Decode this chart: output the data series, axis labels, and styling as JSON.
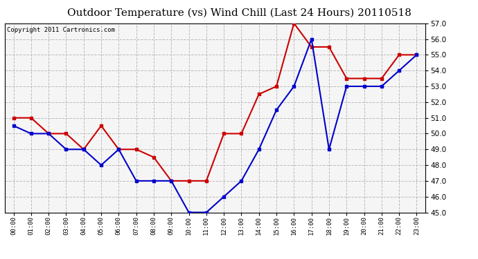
{
  "title": "Outdoor Temperature (vs) Wind Chill (Last 24 Hours) 20110518",
  "copyright": "Copyright 2011 Cartronics.com",
  "hours": [
    "00:00",
    "01:00",
    "02:00",
    "03:00",
    "04:00",
    "05:00",
    "06:00",
    "07:00",
    "08:00",
    "09:00",
    "10:00",
    "11:00",
    "12:00",
    "13:00",
    "14:00",
    "15:00",
    "16:00",
    "17:00",
    "18:00",
    "19:00",
    "20:00",
    "21:00",
    "22:00",
    "23:00"
  ],
  "temp": [
    51.0,
    51.0,
    50.0,
    50.0,
    49.0,
    50.5,
    49.0,
    49.0,
    48.5,
    47.0,
    47.0,
    47.0,
    50.0,
    50.0,
    52.5,
    53.0,
    57.0,
    55.5,
    55.5,
    53.5,
    53.5,
    53.5,
    55.0,
    55.0
  ],
  "windchill": [
    50.5,
    50.0,
    50.0,
    49.0,
    49.0,
    48.0,
    49.0,
    47.0,
    47.0,
    47.0,
    45.0,
    45.0,
    46.0,
    47.0,
    49.0,
    51.5,
    53.0,
    56.0,
    49.0,
    53.0,
    53.0,
    53.0,
    54.0,
    55.0
  ],
  "temp_color": "#cc0000",
  "windchill_color": "#0000cc",
  "ylim_min": 45.0,
  "ylim_max": 57.0,
  "ytick_step": 1.0,
  "background_color": "#ffffff",
  "plot_bg_color": "#f5f5f5",
  "grid_color": "#bbbbbb",
  "title_fontsize": 11,
  "copyright_fontsize": 6.5,
  "marker": "s",
  "marker_size": 3,
  "line_width": 1.5
}
